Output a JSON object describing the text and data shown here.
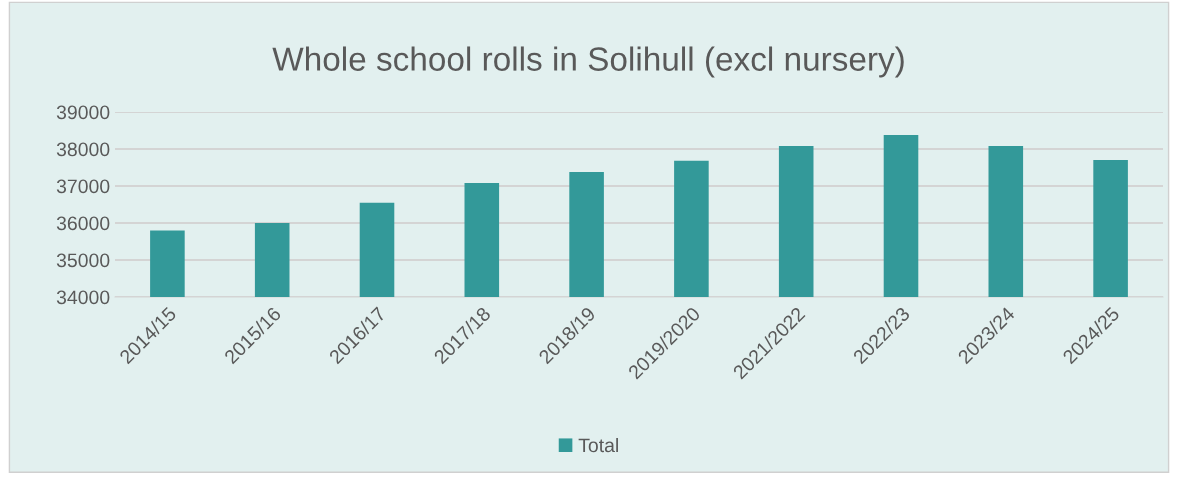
{
  "chart_data": {
    "type": "bar",
    "title": "Whole school rolls in Solihull (excl nursery)",
    "categories": [
      "2014/15",
      "2015/16",
      "2016/17",
      "2017/18",
      "2018/19",
      "2019/2020",
      "2021/2022",
      "2022/23",
      "2023/24",
      "2024/25"
    ],
    "series": [
      {
        "name": "Total",
        "color": "#339999",
        "values": [
          35800,
          36000,
          36550,
          37080,
          37380,
          37680,
          38080,
          38380,
          38080,
          37700
        ]
      }
    ],
    "ylim": [
      34000,
      39000
    ],
    "yticks": [
      34000,
      35000,
      36000,
      37000,
      38000,
      39000
    ],
    "grid": "y",
    "legend": "bottom"
  }
}
